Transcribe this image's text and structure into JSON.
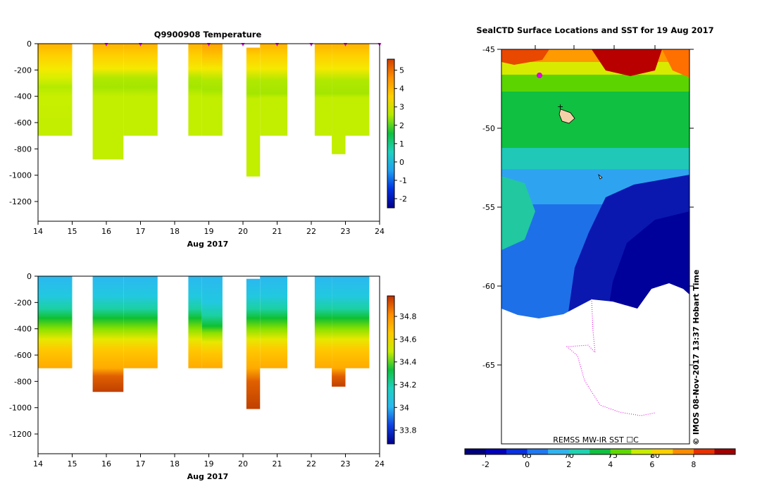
{
  "chart_data": [
    {
      "type": "heatmap",
      "title": "Q9900908  Temperature",
      "xlabel": "Aug 2017",
      "ylabel": "",
      "xlim": [
        14,
        24
      ],
      "ylim": [
        -1350,
        0
      ],
      "x_ticks": [
        "14",
        "15",
        "16",
        "17",
        "18",
        "19",
        "20",
        "21",
        "22",
        "23",
        "24"
      ],
      "y_ticks": [
        "0",
        "-200",
        "-400",
        "-600",
        "-800",
        "-1000",
        "-1200"
      ],
      "colorbar": {
        "min": -2.5,
        "max": 5.6,
        "ticks": [
          "5",
          "4",
          "3",
          "2",
          "1",
          "0",
          "-1",
          "-2"
        ]
      },
      "profile_markers_x": [
        16,
        17,
        19,
        20,
        21,
        22,
        23,
        24
      ],
      "profiles": [
        {
          "x0": 14.0,
          "x1": 15.0,
          "depth": 700,
          "color_stops": [
            [
              0,
              "#ffb300"
            ],
            [
              90,
              "#ffd000"
            ],
            [
              190,
              "#f5e900"
            ],
            [
              260,
              "#d8ee00"
            ],
            [
              330,
              "#b4ea00"
            ],
            [
              400,
              "#c8ef00"
            ],
            [
              700,
              "#c2ee00"
            ]
          ]
        },
        {
          "x0": 15.6,
          "x1": 16.5,
          "depth": 880,
          "color_stops": [
            [
              0,
              "#ffb300"
            ],
            [
              90,
              "#ffd000"
            ],
            [
              190,
              "#f5e900"
            ],
            [
              260,
              "#b0e800"
            ],
            [
              330,
              "#a4e600"
            ],
            [
              400,
              "#c2ee00"
            ],
            [
              880,
              "#c2ee00"
            ]
          ]
        },
        {
          "x0": 16.5,
          "x1": 17.5,
          "depth": 700,
          "color_stops": [
            [
              0,
              "#ffb300"
            ],
            [
              90,
              "#ffd000"
            ],
            [
              190,
              "#f5e900"
            ],
            [
              260,
              "#b0e800"
            ],
            [
              330,
              "#a4e600"
            ],
            [
              400,
              "#c2ee00"
            ],
            [
              700,
              "#c2ee00"
            ]
          ]
        },
        {
          "x0": 18.4,
          "x1": 18.8,
          "depth": 700,
          "color_stops": [
            [
              0,
              "#ffb300"
            ],
            [
              90,
              "#ffd000"
            ],
            [
              190,
              "#f5e900"
            ],
            [
              260,
              "#b0e800"
            ],
            [
              330,
              "#a4e600"
            ],
            [
              400,
              "#c2ee00"
            ],
            [
              700,
              "#c2ee00"
            ]
          ]
        },
        {
          "x0": 18.8,
          "x1": 19.4,
          "depth": 700,
          "color_stops": [
            [
              0,
              "#ffa300"
            ],
            [
              90,
              "#ffc200"
            ],
            [
              190,
              "#f5e900"
            ],
            [
              280,
              "#b0e800"
            ],
            [
              350,
              "#a4e600"
            ],
            [
              410,
              "#c2ee00"
            ],
            [
              700,
              "#c2ee00"
            ]
          ]
        },
        {
          "x0": 20.1,
          "x1": 20.5,
          "depth": 1010,
          "color_stops": [
            [
              30,
              "#ffb300"
            ],
            [
              90,
              "#ffd000"
            ],
            [
              190,
              "#f5e900"
            ],
            [
              280,
              "#b0e800"
            ],
            [
              380,
              "#a4e600"
            ],
            [
              420,
              "#c2ee00"
            ],
            [
              1010,
              "#c2ee00"
            ]
          ]
        },
        {
          "x0": 20.5,
          "x1": 21.3,
          "depth": 700,
          "color_stops": [
            [
              0,
              "#ffb300"
            ],
            [
              90,
              "#ffd000"
            ],
            [
              190,
              "#f5e900"
            ],
            [
              280,
              "#b0e800"
            ],
            [
              380,
              "#a4e600"
            ],
            [
              410,
              "#c2ee00"
            ],
            [
              700,
              "#c2ee00"
            ]
          ]
        },
        {
          "x0": 22.1,
          "x1": 22.6,
          "depth": 700,
          "color_stops": [
            [
              0,
              "#ffb300"
            ],
            [
              90,
              "#ffd000"
            ],
            [
              190,
              "#f5e900"
            ],
            [
              280,
              "#b0e800"
            ],
            [
              380,
              "#a4e600"
            ],
            [
              410,
              "#c2ee00"
            ],
            [
              700,
              "#c2ee00"
            ]
          ]
        },
        {
          "x0": 22.6,
          "x1": 23.0,
          "depth": 840,
          "color_stops": [
            [
              0,
              "#ffb300"
            ],
            [
              90,
              "#ffd000"
            ],
            [
              190,
              "#f5e900"
            ],
            [
              280,
              "#b0e800"
            ],
            [
              380,
              "#a4e600"
            ],
            [
              410,
              "#c2ee00"
            ],
            [
              840,
              "#c2ee00"
            ]
          ]
        },
        {
          "x0": 23.0,
          "x1": 23.7,
          "depth": 700,
          "color_stops": [
            [
              0,
              "#ffb300"
            ],
            [
              90,
              "#ffd000"
            ],
            [
              190,
              "#f5e900"
            ],
            [
              280,
              "#b0e800"
            ],
            [
              380,
              "#a4e600"
            ],
            [
              410,
              "#c2ee00"
            ],
            [
              700,
              "#c2ee00"
            ]
          ]
        }
      ]
    },
    {
      "type": "heatmap",
      "title": "",
      "xlabel": "Aug 2017",
      "ylabel": "",
      "xlim": [
        14,
        24
      ],
      "ylim": [
        -1350,
        0
      ],
      "x_ticks": [
        "14",
        "15",
        "16",
        "17",
        "18",
        "19",
        "20",
        "21",
        "22",
        "23",
        "24"
      ],
      "y_ticks": [
        "0",
        "-200",
        "-400",
        "-600",
        "-800",
        "-1000",
        "-1200"
      ],
      "colorbar": {
        "min": 33.68,
        "max": 34.98,
        "ticks": [
          "34.8",
          "34.6",
          "34.4",
          "34.2",
          "34",
          "33.8"
        ]
      },
      "profiles": [
        {
          "x0": 14.0,
          "x1": 15.0,
          "depth": 700,
          "color_stops": [
            [
              0,
              "#2ab8f0"
            ],
            [
              150,
              "#22c8e0"
            ],
            [
              250,
              "#1cd0a0"
            ],
            [
              320,
              "#10c030"
            ],
            [
              400,
              "#8ae000"
            ],
            [
              480,
              "#e8e800"
            ],
            [
              560,
              "#ffc800"
            ],
            [
              700,
              "#ffaa00"
            ]
          ]
        },
        {
          "x0": 15.6,
          "x1": 16.5,
          "depth": 880,
          "color_stops": [
            [
              0,
              "#2ab8f0"
            ],
            [
              150,
              "#22c8e0"
            ],
            [
              250,
              "#1cd0a0"
            ],
            [
              320,
              "#10c030"
            ],
            [
              400,
              "#8ae000"
            ],
            [
              480,
              "#e8e800"
            ],
            [
              560,
              "#ffc800"
            ],
            [
              700,
              "#ffaa00"
            ],
            [
              760,
              "#e06000"
            ],
            [
              880,
              "#c04000"
            ]
          ]
        },
        {
          "x0": 16.5,
          "x1": 17.5,
          "depth": 700,
          "color_stops": [
            [
              0,
              "#2ab8f0"
            ],
            [
              150,
              "#22c8e0"
            ],
            [
              250,
              "#1cd0a0"
            ],
            [
              320,
              "#10c030"
            ],
            [
              400,
              "#8ae000"
            ],
            [
              480,
              "#e8e800"
            ],
            [
              560,
              "#ffc800"
            ],
            [
              700,
              "#ffaa00"
            ]
          ]
        },
        {
          "x0": 18.4,
          "x1": 18.8,
          "depth": 700,
          "color_stops": [
            [
              0,
              "#2ab8f0"
            ],
            [
              150,
              "#22c8e0"
            ],
            [
              250,
              "#1cd0a0"
            ],
            [
              320,
              "#10c030"
            ],
            [
              400,
              "#8ae000"
            ],
            [
              480,
              "#e8e800"
            ],
            [
              560,
              "#ffc800"
            ],
            [
              700,
              "#ffaa00"
            ]
          ]
        },
        {
          "x0": 18.8,
          "x1": 19.4,
          "depth": 700,
          "color_stops": [
            [
              0,
              "#2ab8f0"
            ],
            [
              200,
              "#22c8e0"
            ],
            [
              300,
              "#1cd0a0"
            ],
            [
              380,
              "#10c030"
            ],
            [
              430,
              "#8ae000"
            ],
            [
              500,
              "#e8e800"
            ],
            [
              580,
              "#ffc800"
            ],
            [
              700,
              "#ffaa00"
            ]
          ]
        },
        {
          "x0": 20.1,
          "x1": 20.5,
          "depth": 1010,
          "color_stops": [
            [
              20,
              "#2ab8f0"
            ],
            [
              150,
              "#22c8e0"
            ],
            [
              250,
              "#1cd0a0"
            ],
            [
              320,
              "#10c030"
            ],
            [
              400,
              "#8ae000"
            ],
            [
              480,
              "#e8e800"
            ],
            [
              560,
              "#ffc800"
            ],
            [
              700,
              "#ffaa00"
            ],
            [
              800,
              "#e06000"
            ],
            [
              1010,
              "#c04000"
            ]
          ]
        },
        {
          "x0": 20.5,
          "x1": 21.3,
          "depth": 700,
          "color_stops": [
            [
              0,
              "#2ab8f0"
            ],
            [
              150,
              "#22c8e0"
            ],
            [
              250,
              "#1cd0a0"
            ],
            [
              320,
              "#10c030"
            ],
            [
              400,
              "#8ae000"
            ],
            [
              480,
              "#e8e800"
            ],
            [
              560,
              "#ffc800"
            ],
            [
              700,
              "#ffaa00"
            ]
          ]
        },
        {
          "x0": 22.1,
          "x1": 22.6,
          "depth": 700,
          "color_stops": [
            [
              0,
              "#2ab8f0"
            ],
            [
              150,
              "#22c8e0"
            ],
            [
              250,
              "#1cd0a0"
            ],
            [
              320,
              "#10c030"
            ],
            [
              400,
              "#8ae000"
            ],
            [
              480,
              "#e8e800"
            ],
            [
              560,
              "#ffc800"
            ],
            [
              700,
              "#ffaa00"
            ]
          ]
        },
        {
          "x0": 22.6,
          "x1": 23.0,
          "depth": 840,
          "color_stops": [
            [
              0,
              "#2ab8f0"
            ],
            [
              150,
              "#22c8e0"
            ],
            [
              250,
              "#1cd0a0"
            ],
            [
              320,
              "#10c030"
            ],
            [
              400,
              "#8ae000"
            ],
            [
              480,
              "#e8e800"
            ],
            [
              560,
              "#ffc800"
            ],
            [
              700,
              "#ffaa00"
            ],
            [
              760,
              "#e06000"
            ],
            [
              840,
              "#c04000"
            ]
          ]
        },
        {
          "x0": 23.0,
          "x1": 23.7,
          "depth": 700,
          "color_stops": [
            [
              0,
              "#2ab8f0"
            ],
            [
              150,
              "#22c8e0"
            ],
            [
              250,
              "#1cd0a0"
            ],
            [
              320,
              "#10c030"
            ],
            [
              400,
              "#8ae000"
            ],
            [
              480,
              "#e8e800"
            ],
            [
              560,
              "#ffc800"
            ],
            [
              700,
              "#ffaa00"
            ]
          ]
        }
      ]
    },
    {
      "type": "heatmap",
      "title": "SealCTD Surface Locations and SST for 19 Aug 2017",
      "ylabel": "",
      "ylim": [
        -70,
        -45
      ],
      "y_ticks": [
        "-45",
        "-50",
        "-55",
        "-60",
        "-65"
      ],
      "x_labels_inside": [
        "65",
        "70",
        "75",
        "80"
      ],
      "source_label": "REMSS MW-IR SST ☐C",
      "timestamp": "© IMOS 08-Nov-2017 13:37 Hobart Time",
      "colorbar": {
        "min": -3,
        "max": 10,
        "ticks": [
          "-2",
          "0",
          "2",
          "4",
          "6",
          "8"
        ]
      },
      "palette": [
        "#00007a",
        "#0000b8",
        "#0a30e0",
        "#1e78f0",
        "#30b4f0",
        "#20d2b0",
        "#10c040",
        "#60d800",
        "#c8ec00",
        "#ffd000",
        "#ff8c00",
        "#e83000",
        "#a00000"
      ]
    }
  ]
}
